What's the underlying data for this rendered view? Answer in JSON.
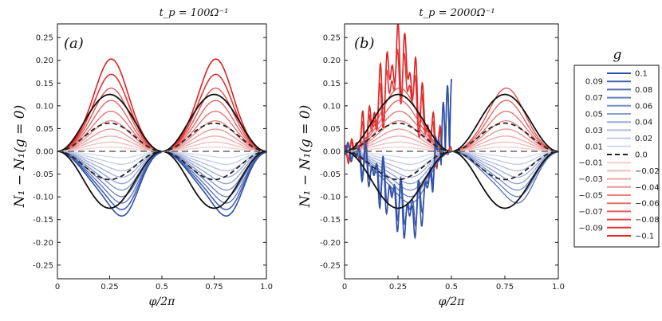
{
  "chart_data": [
    {
      "type": "line",
      "panel_label": "(a)",
      "title": "t_p = 100Ω⁻¹",
      "xlabel": "φ/2π",
      "ylabel": "N₁ − N₁(g = 0)",
      "xlim": [
        0,
        1
      ],
      "ylim": [
        -0.28,
        0.28
      ],
      "xticks": [
        "0",
        "0.25",
        "0.5",
        "0.75",
        "1.0"
      ],
      "xtick_values": [
        0,
        0.25,
        0.5,
        0.75,
        1.0
      ],
      "yticks": [
        "-0.25",
        "-0.20",
        "-0.15",
        "-0.10",
        "-0.05",
        "0.00",
        "0.05",
        "0.10",
        "0.15",
        "0.20",
        "0.25"
      ],
      "ytick_values": [
        -0.25,
        -0.2,
        -0.15,
        -0.1,
        -0.05,
        0,
        0.05,
        0.1,
        0.15,
        0.2,
        0.25
      ],
      "curves": "N1 - N1(g=0) vs phi/2pi for g from -0.1 to 0.1 in steps of 0.01; black solid bounds at ±0.125 amplitude, black dashed at ±0.06",
      "peak_values": {
        "g=-0.1": 0.21,
        "g=0.1": -0.155,
        "black_bound": 0.125,
        "dashed": 0.062
      },
      "noisy": false
    },
    {
      "type": "line",
      "panel_label": "(b)",
      "title": "t_p = 2000Ω⁻¹",
      "xlabel": "φ/2π",
      "ylabel": "N₁ − N₁(g = 0)",
      "xlim": [
        0,
        1
      ],
      "ylim": [
        -0.28,
        0.28
      ],
      "xticks": [
        "0",
        "0.25",
        "0.5",
        "0.75",
        "1.0"
      ],
      "xtick_values": [
        0,
        0.25,
        0.5,
        0.75,
        1.0
      ],
      "yticks": [
        "-0.25",
        "-0.20",
        "-0.15",
        "-0.10",
        "-0.05",
        "0.00",
        "0.05",
        "0.10",
        "0.15",
        "0.20",
        "0.25"
      ],
      "ytick_values": [
        -0.25,
        -0.2,
        -0.15,
        -0.1,
        -0.05,
        0,
        0.05,
        0.1,
        0.15,
        0.2,
        0.25
      ],
      "curves": "same families as (a) with strong oscillations for |g| = 0.1",
      "peak_values": {
        "g=-0.1": 0.26,
        "g=0.1": 0.145,
        "black_bound": 0.125,
        "dashed": 0.062
      },
      "noisy": true
    }
  ],
  "legend": {
    "title": "g",
    "left_column": [
      "0.09",
      "0.07",
      "0.05",
      "0.03",
      "0.01",
      "−0.01",
      "−0.03",
      "−0.05",
      "−0.07",
      "−0.09"
    ],
    "right_column": [
      "0.1",
      "0.08",
      "0.06",
      "0.04",
      "0.02",
      "0.0",
      "−0.02",
      "−0.04",
      "−0.06",
      "−0.08",
      "−0.1"
    ],
    "positive_color": "#3050a8",
    "negative_color": "#e02020",
    "zero_color": "#666666"
  }
}
